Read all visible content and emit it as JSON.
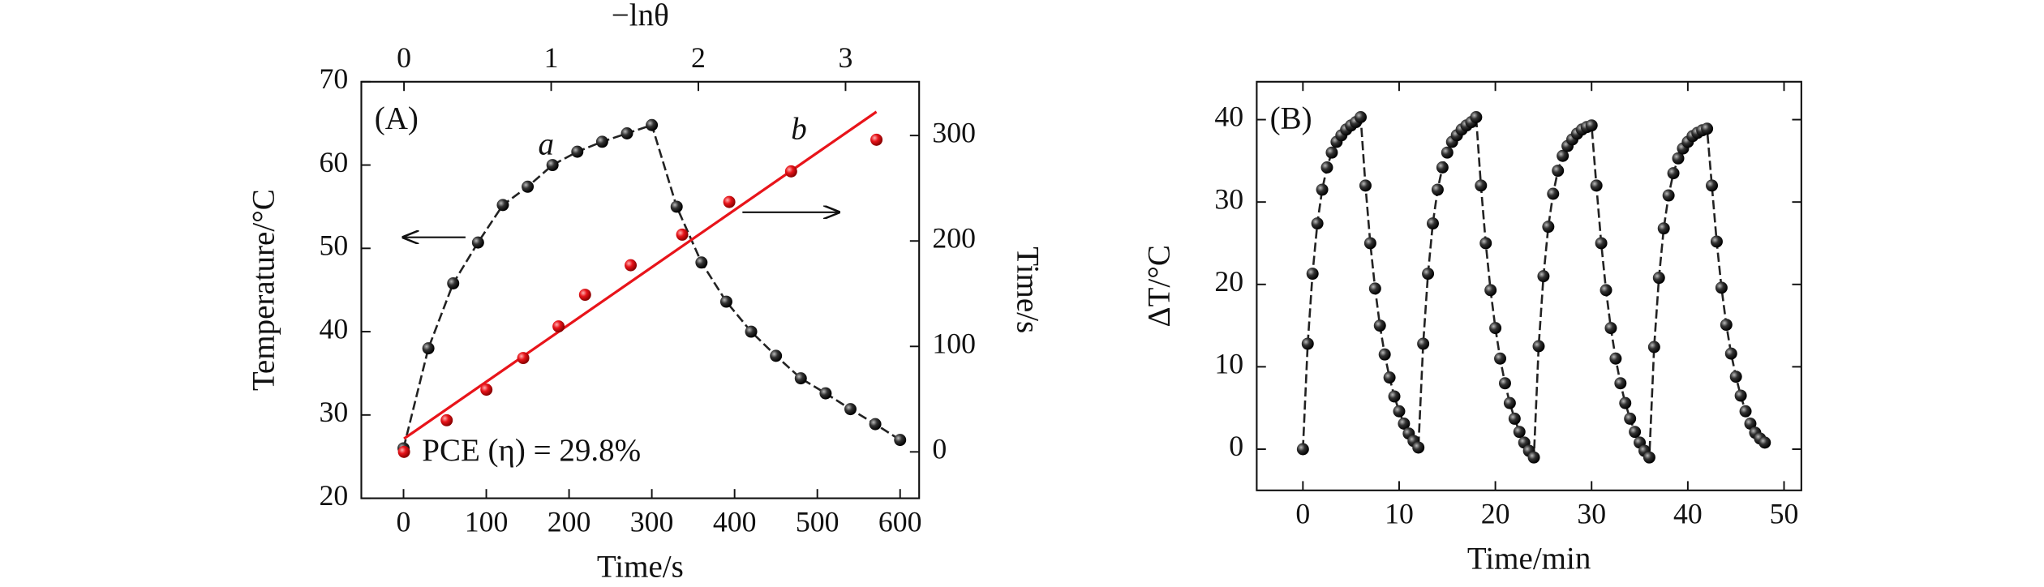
{
  "chart_data": [
    {
      "type": "line",
      "panel_label": "(A)",
      "xlabel": "Time/s",
      "ylabel": "Temperature/°C",
      "x2label": "−lnθ",
      "y2label": "Time/s",
      "xlim": [
        -51,
        623
      ],
      "ylim": [
        20,
        70
      ],
      "x2lim": [
        -0.29,
        3.5
      ],
      "y2lim": [
        -44,
        351
      ],
      "xticks": [
        0,
        100,
        200,
        300,
        400,
        500,
        600
      ],
      "yticks": [
        20,
        30,
        40,
        50,
        60,
        70
      ],
      "x2ticks": [
        0,
        1,
        2,
        3
      ],
      "y2ticks": [
        0,
        100,
        200,
        300
      ],
      "annotation": "PCE (η) = 29.8%",
      "series": [
        {
          "name": "a",
          "color": "#222222",
          "mode": "lines+markers",
          "x": [
            0,
            30,
            60,
            90,
            120,
            150,
            180,
            210,
            240,
            270,
            300,
            330,
            360,
            390,
            420,
            450,
            480,
            510,
            540,
            570,
            600
          ],
          "values": [
            26,
            38,
            45.8,
            50.7,
            55.2,
            57.4,
            60.0,
            61.6,
            62.8,
            63.8,
            64.8,
            55,
            48.3,
            43.6,
            40,
            37.1,
            34.4,
            32.6,
            30.7,
            28.9,
            27
          ]
        },
        {
          "name": "b",
          "color": "#e8141a",
          "mode": "markers",
          "axis": "y2",
          "xaxis": "x2",
          "x": [
            0,
            0.29,
            0.56,
            0.81,
            1.05,
            1.23,
            1.54,
            1.89,
            2.21,
            2.63,
            3.21
          ],
          "values": [
            0,
            30,
            59,
            89,
            119,
            149,
            177,
            206,
            237,
            266,
            296
          ],
          "fit": {
            "x": [
              0,
              3.21
            ],
            "values": [
              12.5,
              322.5
            ]
          }
        }
      ]
    },
    {
      "type": "line",
      "panel_label": "(B)",
      "xlabel": "Time/min",
      "ylabel": "ΔT/°C",
      "xlim": [
        -4.8,
        51.8
      ],
      "ylim": [
        -5,
        44.6
      ],
      "xticks": [
        0,
        10,
        20,
        30,
        40,
        50
      ],
      "yticks": [
        0,
        10,
        20,
        30,
        40
      ],
      "series": [
        {
          "color": "#222222",
          "mode": "lines+markers",
          "x": [
            0,
            0.5,
            1,
            1.5,
            2,
            2.5,
            3,
            3.5,
            4,
            4.5,
            5,
            5.5,
            6,
            6.5,
            7,
            7.5,
            8,
            8.5,
            9,
            9.5,
            10,
            10.5,
            11,
            11.5,
            12,
            12.5,
            13,
            13.5,
            14,
            14.5,
            15,
            15.5,
            16,
            16.5,
            17,
            17.5,
            18,
            18.5,
            19,
            19.5,
            20,
            20.5,
            21,
            21.5,
            22,
            22.5,
            23,
            23.5,
            24,
            24.5,
            25,
            25.5,
            26,
            26.5,
            27,
            27.5,
            28,
            28.5,
            29,
            29.5,
            30,
            30.5,
            31,
            31.5,
            32,
            32.5,
            33,
            33.5,
            34,
            34.5,
            35,
            35.5,
            36,
            36.5,
            37,
            37.5,
            38,
            38.5,
            39,
            39.5,
            40,
            40.5,
            41,
            41.5,
            42,
            42.5,
            43,
            43.5,
            44,
            44.5,
            45,
            45.5,
            46,
            46.5,
            47,
            47.5,
            48
          ],
          "values": [
            0,
            12.8,
            21.3,
            27.4,
            31.5,
            34.2,
            36.0,
            37.3,
            38.1,
            38.8,
            39.3,
            39.7,
            40.3,
            32,
            25,
            19.5,
            15,
            11.5,
            8.7,
            6.4,
            4.6,
            3.1,
            1.9,
            1.0,
            0.2,
            12.8,
            21.3,
            27.4,
            31.5,
            34.2,
            36.0,
            37.3,
            38.1,
            38.8,
            39.3,
            39.7,
            40.3,
            32,
            25,
            19.3,
            14.7,
            11,
            8,
            5.6,
            3.7,
            2.1,
            0.8,
            -0.2,
            -1.0,
            12.5,
            21,
            27,
            31,
            33.8,
            35.6,
            36.8,
            37.6,
            38.3,
            38.8,
            39.1,
            39.3,
            32,
            25,
            19.3,
            14.7,
            11,
            8,
            5.6,
            3.7,
            2.1,
            0.8,
            -0.2,
            -1.0,
            12.4,
            20.8,
            26.8,
            30.8,
            33.5,
            35.3,
            36.5,
            37.3,
            38,
            38.4,
            38.7,
            38.9,
            32,
            25.2,
            19.6,
            15.1,
            11.6,
            8.8,
            6.5,
            4.6,
            3.1,
            2.0,
            1.3,
            0.8
          ]
        }
      ]
    }
  ]
}
